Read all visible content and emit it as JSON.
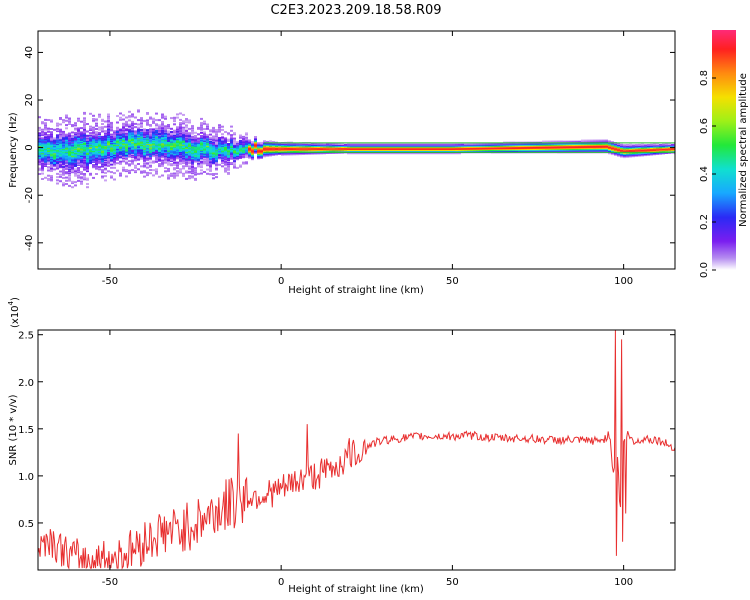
{
  "title": "C2E3.2023.209.18.58.R09",
  "chart_data": [
    {
      "type": "heatmap",
      "xlabel": "Height of straight line (km)",
      "ylabel": "Frequency (Hz)",
      "xlim": [
        -71,
        115
      ],
      "ylim": [
        -51,
        49
      ],
      "xticks": [
        -50,
        0,
        50,
        100
      ],
      "yticks": [
        -40,
        -20,
        0,
        20,
        40
      ],
      "colorbar": {
        "label": "Normalized spectral amplitude",
        "range": [
          0.0,
          1.0
        ],
        "ticks": [
          "0.0",
          "0.2",
          "0.4",
          "0.6",
          "0.8"
        ]
      },
      "ridge": {
        "description_points_x": [
          -71,
          -60,
          -50,
          -40,
          -30,
          -20,
          -10,
          0,
          20,
          50,
          95,
          100,
          115
        ],
        "center_freq": [
          0,
          -1,
          1,
          2,
          1,
          -1,
          0,
          0,
          0,
          0,
          1,
          -1,
          0
        ],
        "half_width": [
          6,
          7,
          6,
          6,
          6,
          5,
          3,
          2,
          1.5,
          1.5,
          2,
          2,
          1.5
        ]
      },
      "grid": false
    },
    {
      "type": "line",
      "xlabel": "Height of straight line (km)",
      "ylabel": "SNR (10 * v/v)",
      "yscale_label": "(x10",
      "yscale_exp": "4",
      "yscale_close": ")",
      "xlim": [
        -71,
        115
      ],
      "ylim": [
        0,
        2.55
      ],
      "xticks": [
        -50,
        0,
        50,
        100
      ],
      "yticks": [
        "0.5",
        "1.0",
        "1.5",
        "2.0",
        "2.5"
      ],
      "series": [
        {
          "color": "#e83030",
          "x": [
            -71,
            -68,
            -65,
            -62,
            -58,
            -55,
            -50,
            -45,
            -40,
            -35,
            -30,
            -25,
            -20,
            -15,
            -10,
            -5,
            0,
            5,
            10,
            15,
            20,
            25,
            30,
            35,
            40,
            45,
            50,
            55,
            60,
            65,
            70,
            75,
            80,
            85,
            90,
            94,
            96,
            97,
            98,
            99,
            100,
            101,
            103,
            106,
            110,
            115
          ],
          "y": [
            0.25,
            0.35,
            0.25,
            0.15,
            0.12,
            0.1,
            0.12,
            0.18,
            0.3,
            0.4,
            0.42,
            0.5,
            0.6,
            0.7,
            0.78,
            0.8,
            0.85,
            0.95,
            1.0,
            1.08,
            1.2,
            1.32,
            1.38,
            1.4,
            1.42,
            1.42,
            1.42,
            1.43,
            1.41,
            1.4,
            1.4,
            1.39,
            1.38,
            1.38,
            1.37,
            1.38,
            1.45,
            1.0,
            1.4,
            0.6,
            1.35,
            1.45,
            1.35,
            1.4,
            1.38,
            1.3
          ],
          "spikes": [
            {
              "x": 97.5,
              "y": 2.55
            },
            {
              "x": 97.8,
              "y": 0.15
            },
            {
              "x": 99.5,
              "y": 2.45
            },
            {
              "x": 99.8,
              "y": 0.3
            },
            {
              "x": 100.5,
              "y": 0.6
            },
            {
              "x": -12.5,
              "y": 1.45
            },
            {
              "x": 7.5,
              "y": 1.55
            },
            {
              "x": 20,
              "y": 1.4
            }
          ]
        }
      ]
    }
  ]
}
